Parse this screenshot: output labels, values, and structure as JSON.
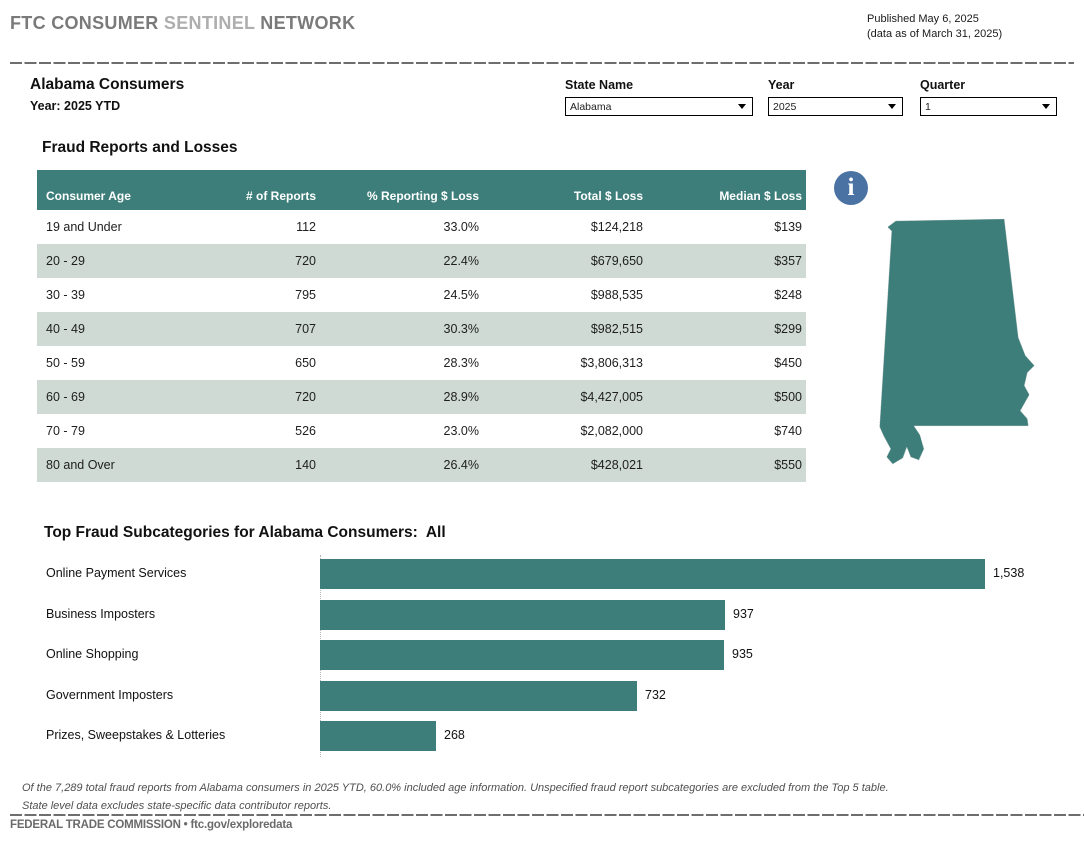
{
  "header": {
    "brand_part1": "FTC CONSUMER ",
    "brand_part2": "SENTINEL ",
    "brand_part3": "NETWORK",
    "published_line1": "Published May 6, 2025",
    "published_line2": "(data as of March 31, 2025)"
  },
  "page": {
    "title": "Alabama Consumers",
    "subtitle": "Year: 2025 YTD"
  },
  "filters": [
    {
      "label": "State Name",
      "value": "Alabama"
    },
    {
      "label": "Year",
      "value": "2025"
    },
    {
      "label": "Quarter",
      "value": "1"
    }
  ],
  "fraud_table": {
    "title": "Fraud Reports and Losses",
    "columns": [
      "Consumer Age",
      "# of Reports",
      "% Reporting $ Loss",
      "Total $ Loss",
      "Median $ Loss"
    ],
    "rows": [
      [
        "19 and Under",
        "112",
        "33.0%",
        "$124,218",
        "$139"
      ],
      [
        "20 - 29",
        "720",
        "22.4%",
        "$679,650",
        "$357"
      ],
      [
        "30 - 39",
        "795",
        "24.5%",
        "$988,535",
        "$248"
      ],
      [
        "40 - 49",
        "707",
        "30.3%",
        "$982,515",
        "$299"
      ],
      [
        "50 - 59",
        "650",
        "28.3%",
        "$3,806,313",
        "$450"
      ],
      [
        "60 - 69",
        "720",
        "28.9%",
        "$4,427,005",
        "$500"
      ],
      [
        "70 - 79",
        "526",
        "23.0%",
        "$2,082,000",
        "$740"
      ],
      [
        "80 and Over",
        "140",
        "26.4%",
        "$428,021",
        "$550"
      ]
    ]
  },
  "map": {
    "state": "Alabama",
    "fill_color": "#3d7e7a"
  },
  "info_icon": {
    "glyph": "i",
    "color": "#4a72a3"
  },
  "chart_data": {
    "type": "bar",
    "orientation": "horizontal",
    "title": "Top Fraud Subcategories for Alabama Consumers:  All",
    "categories": [
      "Online Payment Services",
      "Business Imposters",
      "Online Shopping",
      "Government Imposters",
      "Prizes, Sweepstakes & Lotteries"
    ],
    "values": [
      1538,
      937,
      935,
      732,
      268
    ],
    "value_labels": [
      "1,538",
      "937",
      "935",
      "732",
      "268"
    ],
    "bar_color": "#3d7e7a",
    "xlim": [
      0,
      1600
    ],
    "grid": false,
    "legend": "none"
  },
  "footnote": {
    "text": "Of the 7,289 total fraud reports from Alabama consumers in 2025 YTD, 60.0% included age information. Unspecified fraud report subcategories are excluded from the Top 5 table. State level data excludes state-specific data contributor reports."
  },
  "footer": {
    "text": "FEDERAL TRADE COMMISSION • ftc.gov/exploredata"
  }
}
